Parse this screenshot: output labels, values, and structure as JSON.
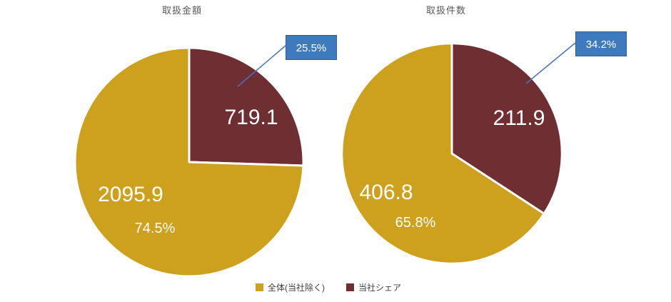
{
  "charts": [
    {
      "title": "取扱金額",
      "callout": "25.5%",
      "gold_value": "2095.9",
      "gold_pct": "74.5%",
      "maroon_value": "719.1"
    },
    {
      "title": "取扱件数",
      "callout": "34.2%",
      "gold_value": "406.8",
      "gold_pct": "65.8%",
      "maroon_value": "211.9"
    }
  ],
  "legend": [
    {
      "label": "全体(当社除く)",
      "color": "#CDA01D"
    },
    {
      "label": "当社シェア",
      "color": "#6F2E32"
    }
  ],
  "colors": {
    "gold": "#CDA01D",
    "maroon": "#6F2E32",
    "callout_bg": "#3E7BBE",
    "callout_border": "#2F5F94",
    "connector": "#4472C4",
    "title": "#595959"
  },
  "chart_data": [
    {
      "type": "pie",
      "title": "取扱金額",
      "legend_position": "bottom",
      "slices": [
        {
          "label": "当社シェア",
          "value": 719.1,
          "pct": 25.5,
          "color": "#6F2E32"
        },
        {
          "label": "全体(当社除く)",
          "value": 2095.9,
          "pct": 74.5,
          "color": "#CDA01D"
        }
      ],
      "callout": "25.5%",
      "start_angle_deg": 0,
      "direction": "clockwise"
    },
    {
      "type": "pie",
      "title": "取扱件数",
      "legend_position": "bottom",
      "slices": [
        {
          "label": "当社シェア",
          "value": 211.9,
          "pct": 34.2,
          "color": "#6F2E32"
        },
        {
          "label": "全体(当社除く)",
          "value": 406.8,
          "pct": 65.8,
          "color": "#CDA01D"
        }
      ],
      "callout": "34.2%",
      "start_angle_deg": 0,
      "direction": "clockwise"
    }
  ]
}
